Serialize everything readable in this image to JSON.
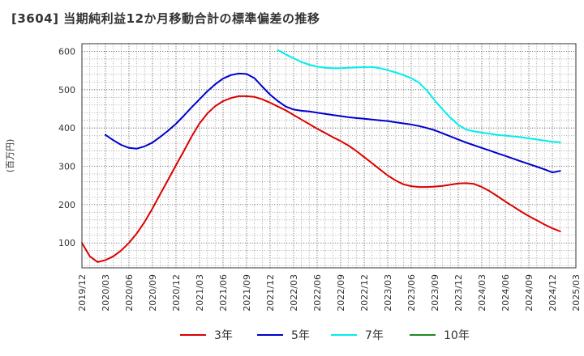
{
  "chart_data": {
    "type": "line",
    "title": "[3604]  当期純利益12か月移動合計の標準偏差の推移",
    "ylabel": "(百万円)",
    "xlabel": "",
    "x_ticks": [
      "2019/12",
      "2020/03",
      "2020/06",
      "2020/09",
      "2020/12",
      "2021/03",
      "2021/06",
      "2021/09",
      "2021/12",
      "2022/03",
      "2022/06",
      "2022/09",
      "2022/12",
      "2023/03",
      "2023/06",
      "2023/09",
      "2023/12",
      "2024/03",
      "2024/06",
      "2024/09",
      "2024/12",
      "2025/03"
    ],
    "y_ticks": [
      100,
      200,
      300,
      400,
      500,
      600
    ],
    "xlim": [
      "2019/12",
      "2025/03"
    ],
    "ylim": [
      35,
      620
    ],
    "grid": true,
    "legend_position": "bottom",
    "series": [
      {
        "name": "3年",
        "color": "#dd0000",
        "points": [
          [
            "2019/12",
            100
          ],
          [
            "2020/01",
            65
          ],
          [
            "2020/02",
            50
          ],
          [
            "2020/03",
            55
          ],
          [
            "2020/04",
            65
          ],
          [
            "2020/05",
            80
          ],
          [
            "2020/06",
            100
          ],
          [
            "2020/07",
            125
          ],
          [
            "2020/08",
            155
          ],
          [
            "2020/09",
            190
          ],
          [
            "2020/10",
            228
          ],
          [
            "2020/11",
            265
          ],
          [
            "2020/12",
            303
          ],
          [
            "2021/01",
            340
          ],
          [
            "2021/02",
            378
          ],
          [
            "2021/03",
            412
          ],
          [
            "2021/04",
            438
          ],
          [
            "2021/05",
            457
          ],
          [
            "2021/06",
            470
          ],
          [
            "2021/07",
            478
          ],
          [
            "2021/08",
            483
          ],
          [
            "2021/09",
            483
          ],
          [
            "2021/10",
            481
          ],
          [
            "2021/11",
            475
          ],
          [
            "2021/12",
            466
          ],
          [
            "2022/01",
            456
          ],
          [
            "2022/02",
            446
          ],
          [
            "2022/03",
            434
          ],
          [
            "2022/04",
            422
          ],
          [
            "2022/05",
            410
          ],
          [
            "2022/06",
            398
          ],
          [
            "2022/07",
            387
          ],
          [
            "2022/08",
            376
          ],
          [
            "2022/09",
            366
          ],
          [
            "2022/10",
            354
          ],
          [
            "2022/11",
            340
          ],
          [
            "2022/12",
            324
          ],
          [
            "2023/01",
            308
          ],
          [
            "2023/02",
            292
          ],
          [
            "2023/03",
            276
          ],
          [
            "2023/04",
            263
          ],
          [
            "2023/05",
            253
          ],
          [
            "2023/06",
            248
          ],
          [
            "2023/07",
            246
          ],
          [
            "2023/08",
            246
          ],
          [
            "2023/09",
            247
          ],
          [
            "2023/10",
            249
          ],
          [
            "2023/11",
            252
          ],
          [
            "2023/12",
            255
          ],
          [
            "2024/01",
            256
          ],
          [
            "2024/02",
            254
          ],
          [
            "2024/03",
            246
          ],
          [
            "2024/04",
            235
          ],
          [
            "2024/05",
            222
          ],
          [
            "2024/06",
            208
          ],
          [
            "2024/07",
            195
          ],
          [
            "2024/08",
            182
          ],
          [
            "2024/09",
            170
          ],
          [
            "2024/10",
            159
          ],
          [
            "2024/11",
            148
          ],
          [
            "2024/12",
            138
          ],
          [
            "2025/01",
            130
          ]
        ]
      },
      {
        "name": "5年",
        "color": "#0000cc",
        "points": [
          [
            "2020/03",
            382
          ],
          [
            "2020/04",
            368
          ],
          [
            "2020/05",
            356
          ],
          [
            "2020/06",
            348
          ],
          [
            "2020/07",
            346
          ],
          [
            "2020/08",
            352
          ],
          [
            "2020/09",
            362
          ],
          [
            "2020/10",
            377
          ],
          [
            "2020/11",
            393
          ],
          [
            "2020/12",
            411
          ],
          [
            "2021/01",
            432
          ],
          [
            "2021/02",
            454
          ],
          [
            "2021/03",
            475
          ],
          [
            "2021/04",
            496
          ],
          [
            "2021/05",
            514
          ],
          [
            "2021/06",
            529
          ],
          [
            "2021/07",
            538
          ],
          [
            "2021/08",
            542
          ],
          [
            "2021/09",
            541
          ],
          [
            "2021/10",
            530
          ],
          [
            "2021/11",
            508
          ],
          [
            "2021/12",
            487
          ],
          [
            "2022/01",
            470
          ],
          [
            "2022/02",
            456
          ],
          [
            "2022/03",
            448
          ],
          [
            "2022/04",
            445
          ],
          [
            "2022/05",
            443
          ],
          [
            "2022/06",
            440
          ],
          [
            "2022/07",
            437
          ],
          [
            "2022/08",
            434
          ],
          [
            "2022/09",
            431
          ],
          [
            "2022/10",
            428
          ],
          [
            "2022/11",
            426
          ],
          [
            "2022/12",
            424
          ],
          [
            "2023/01",
            422
          ],
          [
            "2023/02",
            420
          ],
          [
            "2023/03",
            418
          ],
          [
            "2023/04",
            415
          ],
          [
            "2023/05",
            412
          ],
          [
            "2023/06",
            409
          ],
          [
            "2023/07",
            405
          ],
          [
            "2023/08",
            400
          ],
          [
            "2023/09",
            394
          ],
          [
            "2023/10",
            386
          ],
          [
            "2023/11",
            378
          ],
          [
            "2023/12",
            370
          ],
          [
            "2024/01",
            362
          ],
          [
            "2024/02",
            355
          ],
          [
            "2024/03",
            348
          ],
          [
            "2024/04",
            341
          ],
          [
            "2024/05",
            334
          ],
          [
            "2024/06",
            327
          ],
          [
            "2024/07",
            320
          ],
          [
            "2024/08",
            313
          ],
          [
            "2024/09",
            306
          ],
          [
            "2024/10",
            299
          ],
          [
            "2024/11",
            292
          ],
          [
            "2024/12",
            284
          ],
          [
            "2025/01",
            288
          ]
        ]
      },
      {
        "name": "7年",
        "color": "#00eeee",
        "points": [
          [
            "2022/01",
            603
          ],
          [
            "2022/02",
            592
          ],
          [
            "2022/03",
            582
          ],
          [
            "2022/04",
            572
          ],
          [
            "2022/05",
            565
          ],
          [
            "2022/06",
            560
          ],
          [
            "2022/07",
            557
          ],
          [
            "2022/08",
            556
          ],
          [
            "2022/09",
            556
          ],
          [
            "2022/10",
            557
          ],
          [
            "2022/11",
            558
          ],
          [
            "2022/12",
            559
          ],
          [
            "2023/01",
            559
          ],
          [
            "2023/02",
            556
          ],
          [
            "2023/03",
            551
          ],
          [
            "2023/04",
            545
          ],
          [
            "2023/05",
            538
          ],
          [
            "2023/06",
            530
          ],
          [
            "2023/07",
            518
          ],
          [
            "2023/08",
            498
          ],
          [
            "2023/09",
            472
          ],
          [
            "2023/10",
            448
          ],
          [
            "2023/11",
            427
          ],
          [
            "2023/12",
            408
          ],
          [
            "2024/01",
            396
          ],
          [
            "2024/02",
            391
          ],
          [
            "2024/03",
            388
          ],
          [
            "2024/04",
            385
          ],
          [
            "2024/05",
            382
          ],
          [
            "2024/06",
            380
          ],
          [
            "2024/07",
            378
          ],
          [
            "2024/08",
            376
          ],
          [
            "2024/09",
            373
          ],
          [
            "2024/10",
            370
          ],
          [
            "2024/11",
            367
          ],
          [
            "2024/12",
            364
          ],
          [
            "2025/01",
            363
          ]
        ]
      },
      {
        "name": "10年",
        "color": "#228822",
        "points": []
      }
    ]
  }
}
